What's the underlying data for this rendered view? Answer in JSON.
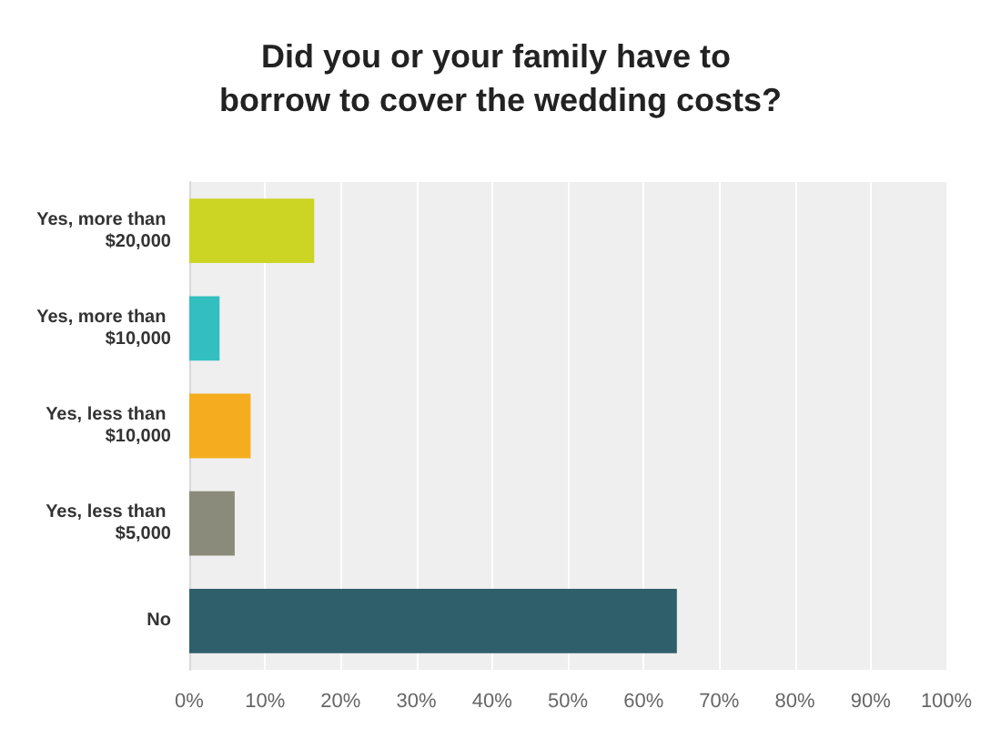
{
  "chart_data": {
    "type": "bar",
    "orientation": "horizontal",
    "title": "Did you or your family have to borrow to cover the wedding costs?",
    "categories": [
      "Yes, more than $20,000",
      "Yes, more than $10,000",
      "Yes, less than $10,000",
      "Yes, less than $5,000",
      "No"
    ],
    "values": [
      16.5,
      4.0,
      8.1,
      6.0,
      64.4
    ],
    "colors": [
      "#ccd424",
      "#33bfbf",
      "#f5ad1f",
      "#8a8b7b",
      "#2f5f6b"
    ],
    "xlim": [
      0,
      100
    ],
    "xticks": [
      {
        "value": 0,
        "label": "0%"
      },
      {
        "value": 10,
        "label": "10%"
      },
      {
        "value": 20,
        "label": "20%"
      },
      {
        "value": 30,
        "label": "30%"
      },
      {
        "value": 40,
        "label": "40%"
      },
      {
        "value": 50,
        "label": "50%"
      },
      {
        "value": 60,
        "label": "60%"
      },
      {
        "value": 70,
        "label": "70%"
      },
      {
        "value": 80,
        "label": "80%"
      },
      {
        "value": 90,
        "label": "90%"
      },
      {
        "value": 100,
        "label": "100%"
      }
    ],
    "grid": "x"
  }
}
